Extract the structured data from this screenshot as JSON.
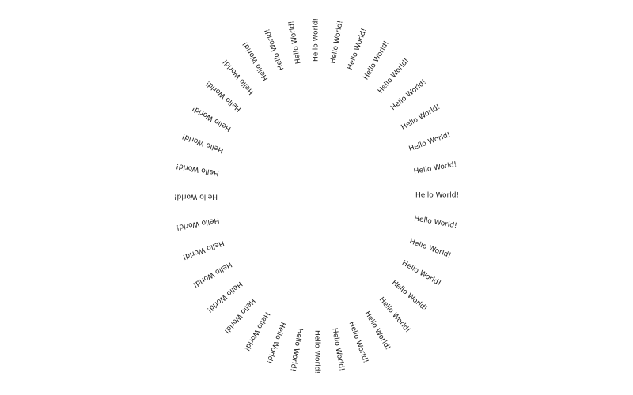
{
  "text": "Hello World!",
  "text_color": "#1a1a1a",
  "background": "#ffffff",
  "label_count": 36
}
